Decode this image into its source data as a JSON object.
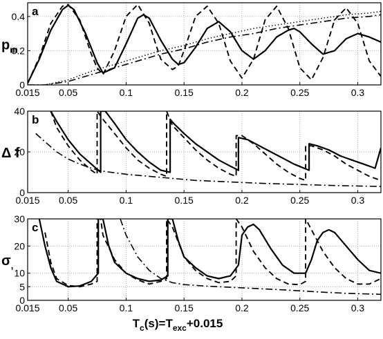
{
  "chart_data": [
    {
      "type": "line",
      "panel": "a",
      "ylabel": "p_m",
      "xlim": [
        0.015,
        0.32
      ],
      "ylim": [
        0,
        0.48
      ],
      "xticks": [
        "0.015",
        "0.05",
        "0.1",
        "0.15",
        "0.2",
        "0.25",
        "0.3"
      ],
      "yticks": [
        "0",
        "0.2",
        "0.4"
      ],
      "grid": true,
      "series": [
        {
          "style": "solid",
          "x": [
            0.015,
            0.025,
            0.035,
            0.045,
            0.05,
            0.055,
            0.065,
            0.075,
            0.08,
            0.09,
            0.1,
            0.11,
            0.115,
            0.12,
            0.13,
            0.14,
            0.145,
            0.15,
            0.16,
            0.17,
            0.18,
            0.19,
            0.2,
            0.21,
            0.22,
            0.23,
            0.24,
            0.245,
            0.25,
            0.26,
            0.27,
            0.28,
            0.29,
            0.3,
            0.31,
            0.32
          ],
          "y": [
            0.01,
            0.15,
            0.32,
            0.44,
            0.465,
            0.44,
            0.3,
            0.13,
            0.07,
            0.1,
            0.24,
            0.39,
            0.41,
            0.39,
            0.26,
            0.15,
            0.12,
            0.13,
            0.22,
            0.33,
            0.37,
            0.31,
            0.2,
            0.15,
            0.2,
            0.28,
            0.32,
            0.33,
            0.31,
            0.24,
            0.18,
            0.2,
            0.27,
            0.3,
            0.28,
            0.25
          ]
        },
        {
          "style": "dashed",
          "x": [
            0.015,
            0.025,
            0.035,
            0.045,
            0.05,
            0.06,
            0.07,
            0.075,
            0.08,
            0.09,
            0.1,
            0.11,
            0.12,
            0.125,
            0.13,
            0.14,
            0.145,
            0.15,
            0.16,
            0.17,
            0.18,
            0.19,
            0.2,
            0.21,
            0.22,
            0.23,
            0.24,
            0.25,
            0.26,
            0.27,
            0.28,
            0.29,
            0.3,
            0.31,
            0.32
          ],
          "y": [
            0.01,
            0.16,
            0.36,
            0.46,
            0.47,
            0.38,
            0.18,
            0.1,
            0.06,
            0.2,
            0.4,
            0.47,
            0.36,
            0.25,
            0.15,
            0.09,
            0.11,
            0.2,
            0.4,
            0.46,
            0.36,
            0.14,
            0.04,
            0.15,
            0.38,
            0.46,
            0.33,
            0.1,
            0.03,
            0.16,
            0.38,
            0.45,
            0.36,
            0.14,
            0.05
          ]
        },
        {
          "style": "dotted",
          "x": [
            0.015,
            0.03,
            0.05,
            0.07,
            0.09,
            0.11,
            0.13,
            0.15,
            0.17,
            0.19,
            0.21,
            0.23,
            0.25,
            0.27,
            0.29,
            0.31,
            0.32
          ],
          "y": [
            0.0,
            0.0,
            0.03,
            0.08,
            0.12,
            0.16,
            0.2,
            0.23,
            0.27,
            0.3,
            0.33,
            0.35,
            0.37,
            0.39,
            0.41,
            0.42,
            0.43
          ]
        },
        {
          "style": "dashdot",
          "x": [
            0.015,
            0.03,
            0.05,
            0.07,
            0.09,
            0.11,
            0.13,
            0.15,
            0.17,
            0.19,
            0.21,
            0.23,
            0.25,
            0.27,
            0.29,
            0.31,
            0.32
          ],
          "y": [
            0.0,
            0.0,
            0.02,
            0.06,
            0.1,
            0.14,
            0.18,
            0.21,
            0.25,
            0.28,
            0.3,
            0.33,
            0.35,
            0.37,
            0.39,
            0.4,
            0.41
          ]
        }
      ]
    },
    {
      "type": "line",
      "panel": "b",
      "ylabel": "Δf",
      "xlim": [
        0.015,
        0.32
      ],
      "ylim": [
        0,
        40
      ],
      "xticks": [
        "0.015",
        "0.05",
        "0.1",
        "0.15",
        "0.2",
        "0.25",
        "0.3"
      ],
      "yticks": [
        "0",
        "20",
        "40"
      ],
      "grid": true,
      "series": [
        {
          "style": "solid",
          "x": [
            0.035,
            0.04,
            0.05,
            0.06,
            0.07,
            0.078,
            0.078,
            0.082,
            0.09,
            0.1,
            0.11,
            0.12,
            0.13,
            0.138,
            0.138,
            0.141,
            0.15,
            0.16,
            0.17,
            0.18,
            0.19,
            0.197,
            0.197,
            0.205,
            0.215,
            0.225,
            0.235,
            0.245,
            0.258,
            0.258,
            0.265,
            0.275,
            0.285,
            0.295,
            0.305,
            0.315,
            0.32
          ],
          "y": [
            40,
            35,
            26,
            19,
            14,
            10,
            40,
            40,
            34,
            26,
            20,
            15,
            11,
            10,
            36,
            34,
            29,
            24,
            20,
            16,
            13,
            11,
            27,
            26,
            23,
            20,
            17,
            14,
            11,
            24,
            23,
            21,
            18,
            16,
            14,
            12,
            22
          ]
        },
        {
          "style": "dashed",
          "x": [
            0.035,
            0.04,
            0.05,
            0.06,
            0.07,
            0.075,
            0.075,
            0.08,
            0.09,
            0.1,
            0.11,
            0.12,
            0.13,
            0.135,
            0.135,
            0.14,
            0.15,
            0.16,
            0.17,
            0.18,
            0.19,
            0.195,
            0.195,
            0.2,
            0.21,
            0.22,
            0.23,
            0.24,
            0.25,
            0.255,
            0.255,
            0.26,
            0.27,
            0.28,
            0.29,
            0.3,
            0.31,
            0.32
          ],
          "y": [
            40,
            32,
            23,
            16,
            11,
            9,
            40,
            36,
            29,
            22,
            16,
            12,
            9,
            8,
            40,
            33,
            27,
            21,
            16,
            12,
            9,
            8,
            28,
            28,
            24,
            19,
            14,
            10,
            7,
            6,
            23,
            23,
            21,
            18,
            14,
            11,
            8,
            6
          ]
        },
        {
          "style": "dashdot",
          "x": [
            0.022,
            0.03,
            0.04,
            0.05,
            0.06,
            0.07,
            0.08,
            0.1,
            0.12,
            0.14,
            0.16,
            0.18,
            0.2,
            0.22,
            0.25,
            0.28,
            0.32
          ],
          "y": [
            29,
            25,
            20,
            16.5,
            14,
            12,
            10.5,
            9,
            8,
            7,
            6,
            5.5,
            5,
            4.5,
            4,
            3.5,
            3
          ]
        }
      ]
    },
    {
      "type": "line",
      "panel": "c",
      "ylabel": "σ",
      "xlim": [
        0.015,
        0.32
      ],
      "ylim": [
        0,
        30
      ],
      "xticks": [
        "0.015",
        "0.05",
        "0.1",
        "0.15",
        "0.2",
        "0.25",
        "0.3"
      ],
      "yticks": [
        "0",
        "5",
        "10",
        "20",
        "30"
      ],
      "grid": true,
      "series": [
        {
          "style": "solid",
          "x": [
            0.025,
            0.03,
            0.035,
            0.04,
            0.05,
            0.06,
            0.07,
            0.076,
            0.076,
            0.08,
            0.085,
            0.09,
            0.1,
            0.11,
            0.12,
            0.13,
            0.136,
            0.136,
            0.14,
            0.145,
            0.15,
            0.16,
            0.17,
            0.18,
            0.19,
            0.197,
            0.2,
            0.205,
            0.21,
            0.215,
            0.225,
            0.235,
            0.245,
            0.255,
            0.26,
            0.265,
            0.27,
            0.275,
            0.28,
            0.29,
            0.3,
            0.31,
            0.32
          ],
          "y": [
            30,
            20,
            12,
            7,
            5,
            5.3,
            7,
            10,
            30,
            30,
            20,
            14,
            10,
            8,
            7,
            7.5,
            9,
            30,
            30,
            22,
            16,
            12,
            9,
            8,
            9,
            13,
            24,
            27,
            28,
            26,
            19,
            13,
            10,
            10,
            15,
            22,
            25,
            26,
            25,
            20,
            15,
            11,
            10
          ]
        },
        {
          "style": "dashed",
          "x": [
            0.03,
            0.035,
            0.04,
            0.05,
            0.06,
            0.07,
            0.075,
            0.075,
            0.078,
            0.08,
            0.09,
            0.1,
            0.11,
            0.12,
            0.13,
            0.135,
            0.135,
            0.14,
            0.15,
            0.16,
            0.17,
            0.18,
            0.19,
            0.195,
            0.195,
            0.2,
            0.21,
            0.22,
            0.23,
            0.24,
            0.25,
            0.255,
            0.255,
            0.26,
            0.27,
            0.28,
            0.29,
            0.3,
            0.31,
            0.32
          ],
          "y": [
            25,
            14,
            8,
            5.5,
            5,
            6,
            7,
            30,
            30,
            24,
            15,
            10,
            7.5,
            6,
            7,
            8,
            30,
            27,
            16,
            11,
            8,
            6.5,
            7,
            9,
            30,
            27,
            18,
            12,
            8,
            6,
            5.8,
            7,
            30,
            26,
            18,
            12,
            8,
            6,
            6,
            8
          ]
        },
        {
          "style": "dashdot",
          "x": [
            0.095,
            0.1,
            0.11,
            0.12,
            0.13,
            0.14,
            0.15,
            0.17,
            0.19,
            0.21,
            0.23,
            0.25,
            0.27,
            0.29,
            0.32
          ],
          "y": [
            30,
            24,
            16,
            11,
            8,
            6.5,
            5.8,
            5.2,
            4.8,
            4.4,
            4,
            3.5,
            3,
            2.6,
            2.2
          ]
        }
      ]
    }
  ],
  "panels": [
    {
      "letter": "a",
      "ylabel_main": "p",
      "ylabel_sub": "m"
    },
    {
      "letter": "b",
      "ylabel_main": "Δ f",
      "ylabel_sub": ""
    },
    {
      "letter": "c",
      "ylabel_main": "σ",
      "ylabel_sub": ","
    }
  ],
  "xlabel": {
    "p1": "T",
    "p1_sub": "c",
    "p2": "(s)=T",
    "p2_sub": "exc",
    "p3": "+0.015"
  }
}
